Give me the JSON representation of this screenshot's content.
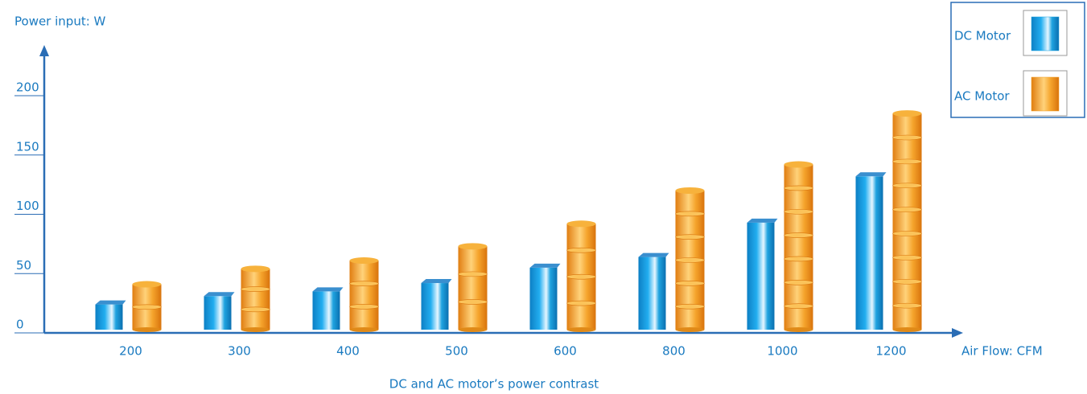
{
  "chart_data": {
    "type": "bar",
    "y_label": "Power input: W",
    "x_label": "Air Flow: CFM",
    "caption": "DC and AC motor’s power contrast",
    "categories": [
      "200",
      "300",
      "400",
      "500",
      "600",
      "800",
      "1000",
      "1200"
    ],
    "series": [
      {
        "name": "DC Motor",
        "color": "#1fa3e0",
        "values": [
          24,
          31,
          35,
          42,
          55,
          64,
          93,
          132
        ]
      },
      {
        "name": "AC Motor",
        "color": "#f29b1f",
        "values": [
          41,
          54,
          61,
          73,
          92,
          120,
          142,
          185
        ]
      }
    ],
    "ylim": [
      0,
      240
    ],
    "yticks": [
      0,
      50,
      100,
      150,
      200
    ],
    "legend": "top-right"
  }
}
